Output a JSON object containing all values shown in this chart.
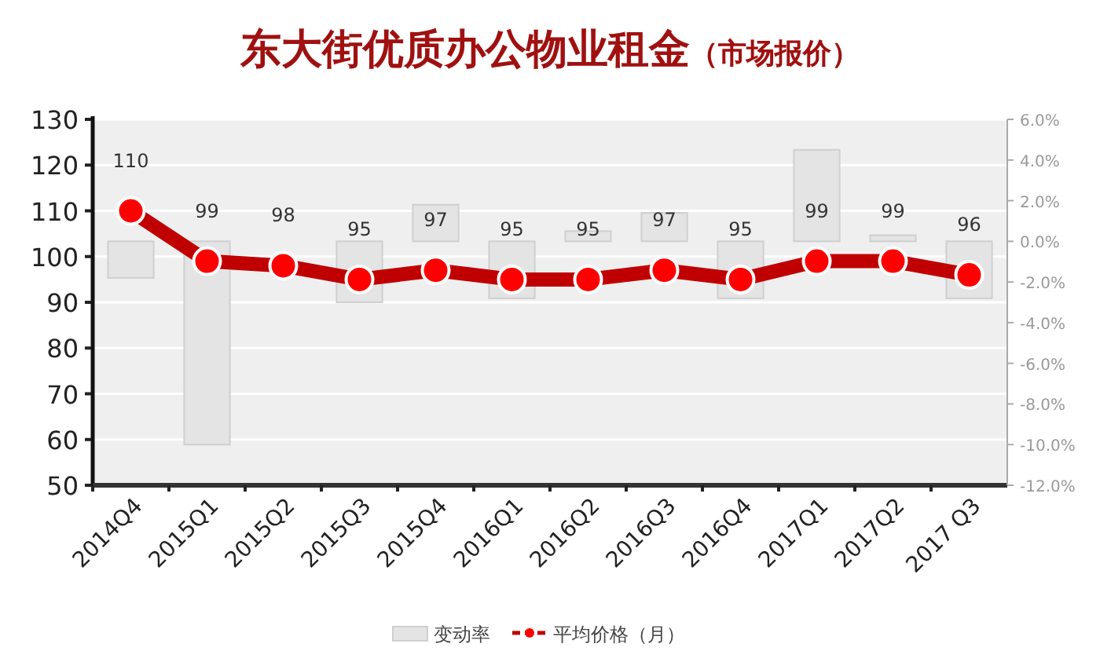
{
  "chart_data": {
    "type": "bar",
    "title": "东大街优质办公物业租金",
    "subtitle": "（市场报价）",
    "categories": [
      "2014Q4",
      "2015Q1",
      "2015Q2",
      "2015Q3",
      "2015Q4",
      "2016Q1",
      "2016Q2",
      "2016Q3",
      "2016Q4",
      "2017Q1",
      "2017Q2",
      "2017 Q3"
    ],
    "series": [
      {
        "name": "变动率",
        "axis": "y2",
        "color": "#e4e4e4",
        "values": [
          -1.8,
          -10.0,
          null,
          -3.0,
          1.8,
          -2.8,
          0.5,
          1.4,
          -2.8,
          4.5,
          0.3,
          -2.8
        ]
      },
      {
        "name": "平均价格（月）",
        "type": "line",
        "color": "#c00000",
        "marker": "circle",
        "line_style": "solid",
        "values": [
          110,
          99,
          98,
          95,
          97,
          95,
          95,
          97,
          95,
          99,
          99,
          96
        ],
        "value_labels": [
          "110",
          "99",
          "98",
          "95",
          "97",
          "95",
          "95",
          "97",
          "95",
          "99",
          "99",
          "96"
        ]
      }
    ],
    "ylim": [
      50,
      130
    ],
    "yticks": [
      50,
      60,
      70,
      80,
      90,
      100,
      110,
      120,
      130
    ],
    "y2lim": [
      -12,
      6
    ],
    "y2ticks": [
      {
        "value": -12,
        "label": "-12.0%"
      },
      {
        "value": -10,
        "label": "-10.0%"
      },
      {
        "value": -8,
        "label": "-8.0%"
      },
      {
        "value": -6,
        "label": "-6.0%"
      },
      {
        "value": -4,
        "label": "-4.0%"
      },
      {
        "value": -2,
        "label": "-2.0%"
      },
      {
        "value": 0,
        "label": "0.0%"
      },
      {
        "value": 2,
        "label": "2.0%"
      },
      {
        "value": 4,
        "label": "4.0%"
      },
      {
        "value": 6,
        "label": "6.0%"
      }
    ],
    "grid": "y",
    "legend": "bottom"
  }
}
